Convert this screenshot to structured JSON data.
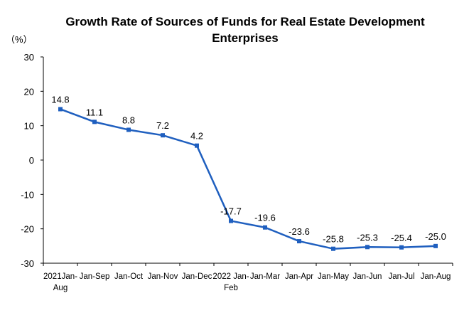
{
  "chart_data": {
    "type": "line",
    "title_lines": [
      "Growth Rate of Sources of Funds for Real Estate Development",
      "Enterprises"
    ],
    "y_unit": "（%）",
    "categories": [
      [
        "2021Jan-",
        "Aug"
      ],
      [
        "Jan-Sep"
      ],
      [
        "Jan-Oct"
      ],
      [
        "Jan-Nov"
      ],
      [
        "Jan-Dec"
      ],
      [
        "2022 Jan-",
        "Feb"
      ],
      [
        "Jan-Mar"
      ],
      [
        "Jan-Apr"
      ],
      [
        "Jan-May"
      ],
      [
        "Jan-Jun"
      ],
      [
        "Jan-Jul"
      ],
      [
        "Jan-Aug"
      ]
    ],
    "series": [
      {
        "values": [
          14.8,
          11.1,
          8.8,
          7.2,
          4.2,
          -17.7,
          -19.6,
          -23.6,
          -25.8,
          -25.3,
          -25.4,
          -25.0
        ],
        "data_labels": [
          "14.8",
          "11.1",
          "8.8",
          "7.2",
          "4.2",
          "-17.7",
          "-19.6",
          "-23.6",
          "-25.8",
          "-25.3",
          "-25.4",
          "-25.0"
        ]
      }
    ],
    "ylim": [
      -30,
      30
    ],
    "y_ticks": [
      30,
      20,
      10,
      0,
      -10,
      -20,
      -30
    ],
    "grid": false,
    "line_color": "#1f5fbf",
    "marker_color": "#1f5fbf"
  }
}
